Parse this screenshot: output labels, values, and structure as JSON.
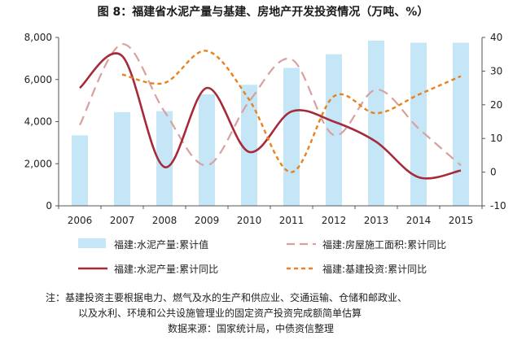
{
  "chart_data": {
    "type": "bar+line",
    "title": "图 8：福建省水泥产量与基建、房地产开发投资情况（万吨、%）",
    "categories": [
      "2006",
      "2007",
      "2008",
      "2009",
      "2010",
      "2011",
      "2012",
      "2013",
      "2014",
      "2015"
    ],
    "y_left": {
      "ylim": [
        0,
        8000
      ],
      "ticks": [
        "0",
        "2,000",
        "4,000",
        "6,000",
        "8,000"
      ],
      "tick_values": [
        0,
        2000,
        4000,
        6000,
        8000
      ]
    },
    "y_right": {
      "ylim": [
        -10,
        40
      ],
      "ticks": [
        "-10",
        "0",
        "10",
        "20",
        "30",
        "40"
      ],
      "tick_values": [
        -10,
        0,
        10,
        20,
        30,
        40
      ]
    },
    "series": [
      {
        "name": "福建:水泥产量:累计值",
        "kind": "bar",
        "axis": "left",
        "color": "#c5e6f6",
        "values": [
          3350,
          4450,
          4500,
          5300,
          5750,
          6550,
          7200,
          7850,
          7750,
          7750
        ]
      },
      {
        "name": "福建:房屋施工面积:累计同比",
        "kind": "dashed",
        "axis": "right",
        "color": "#d9a0a0",
        "values": [
          14,
          38,
          18,
          2,
          21,
          33.5,
          11,
          24.5,
          13,
          2
        ]
      },
      {
        "name": "福建:水泥产量:累计同比",
        "kind": "line",
        "axis": "right",
        "color": "#a52a3a",
        "values": [
          25,
          34.5,
          1.5,
          25,
          6,
          18,
          15,
          9,
          -1.5,
          0.5
        ]
      },
      {
        "name": "福建:基建投资:累计同比",
        "kind": "dotted",
        "axis": "right",
        "color": "#e8811e",
        "values": [
          null,
          29,
          26.5,
          36,
          21.5,
          0,
          22.5,
          17.5,
          23,
          28.5
        ]
      }
    ],
    "grid": false,
    "legend": "bottom"
  },
  "notes": {
    "line1": "注：基建投资主要根据电力、燃气及水的生产和供应业、交通运输、仓储和邮政业、",
    "line2": "以及水利、环境和公共设施管理业的固定资产投资完成额简单估算",
    "source": "数据来源：国家统计局，中债资信整理"
  }
}
